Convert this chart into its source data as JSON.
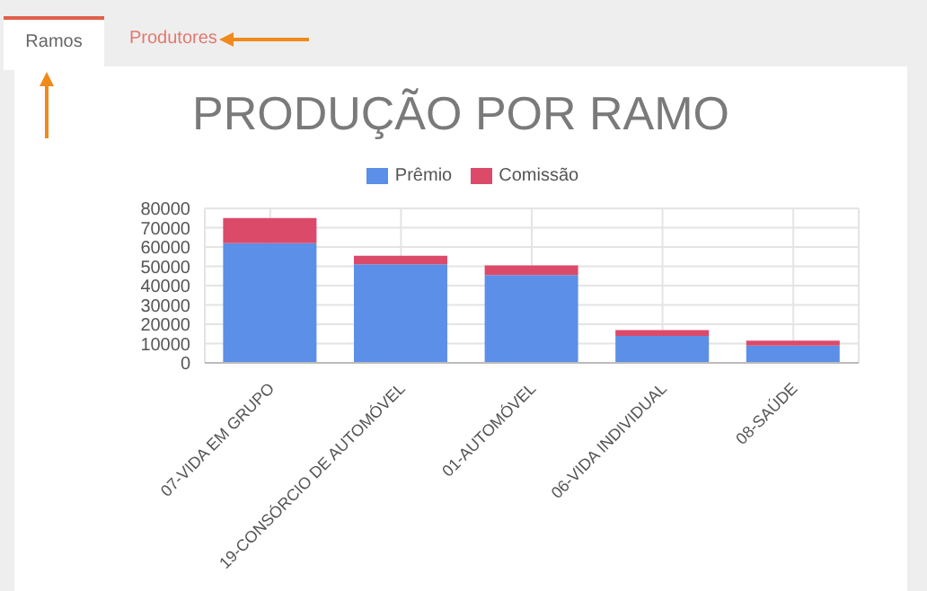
{
  "chart_data": {
    "type": "bar",
    "title": "PRODUÇÃO POR RAMO",
    "categories": [
      "07-VIDA EM GRUPO",
      "19-CONSÓRCIO DE AUTOMÓVEL",
      "01-AUTOMÓVEL",
      "06-VIDA INDIVIDUAL",
      "08-SAÚDE"
    ],
    "series": [
      {
        "name": "Prêmio",
        "color": "#5b8fe8",
        "values": [
          62000,
          51000,
          45500,
          14000,
          9000
        ]
      },
      {
        "name": "Comissão",
        "color": "#dc4a6a",
        "values": [
          13000,
          4500,
          5000,
          3000,
          2500
        ]
      }
    ],
    "stacked": true,
    "ylim": [
      0,
      80000
    ],
    "yticks": [
      0,
      10000,
      20000,
      30000,
      40000,
      50000,
      60000,
      70000,
      80000
    ],
    "grid": true,
    "legend": "top",
    "annotations": [
      "Ramos",
      "Produtores"
    ]
  }
}
